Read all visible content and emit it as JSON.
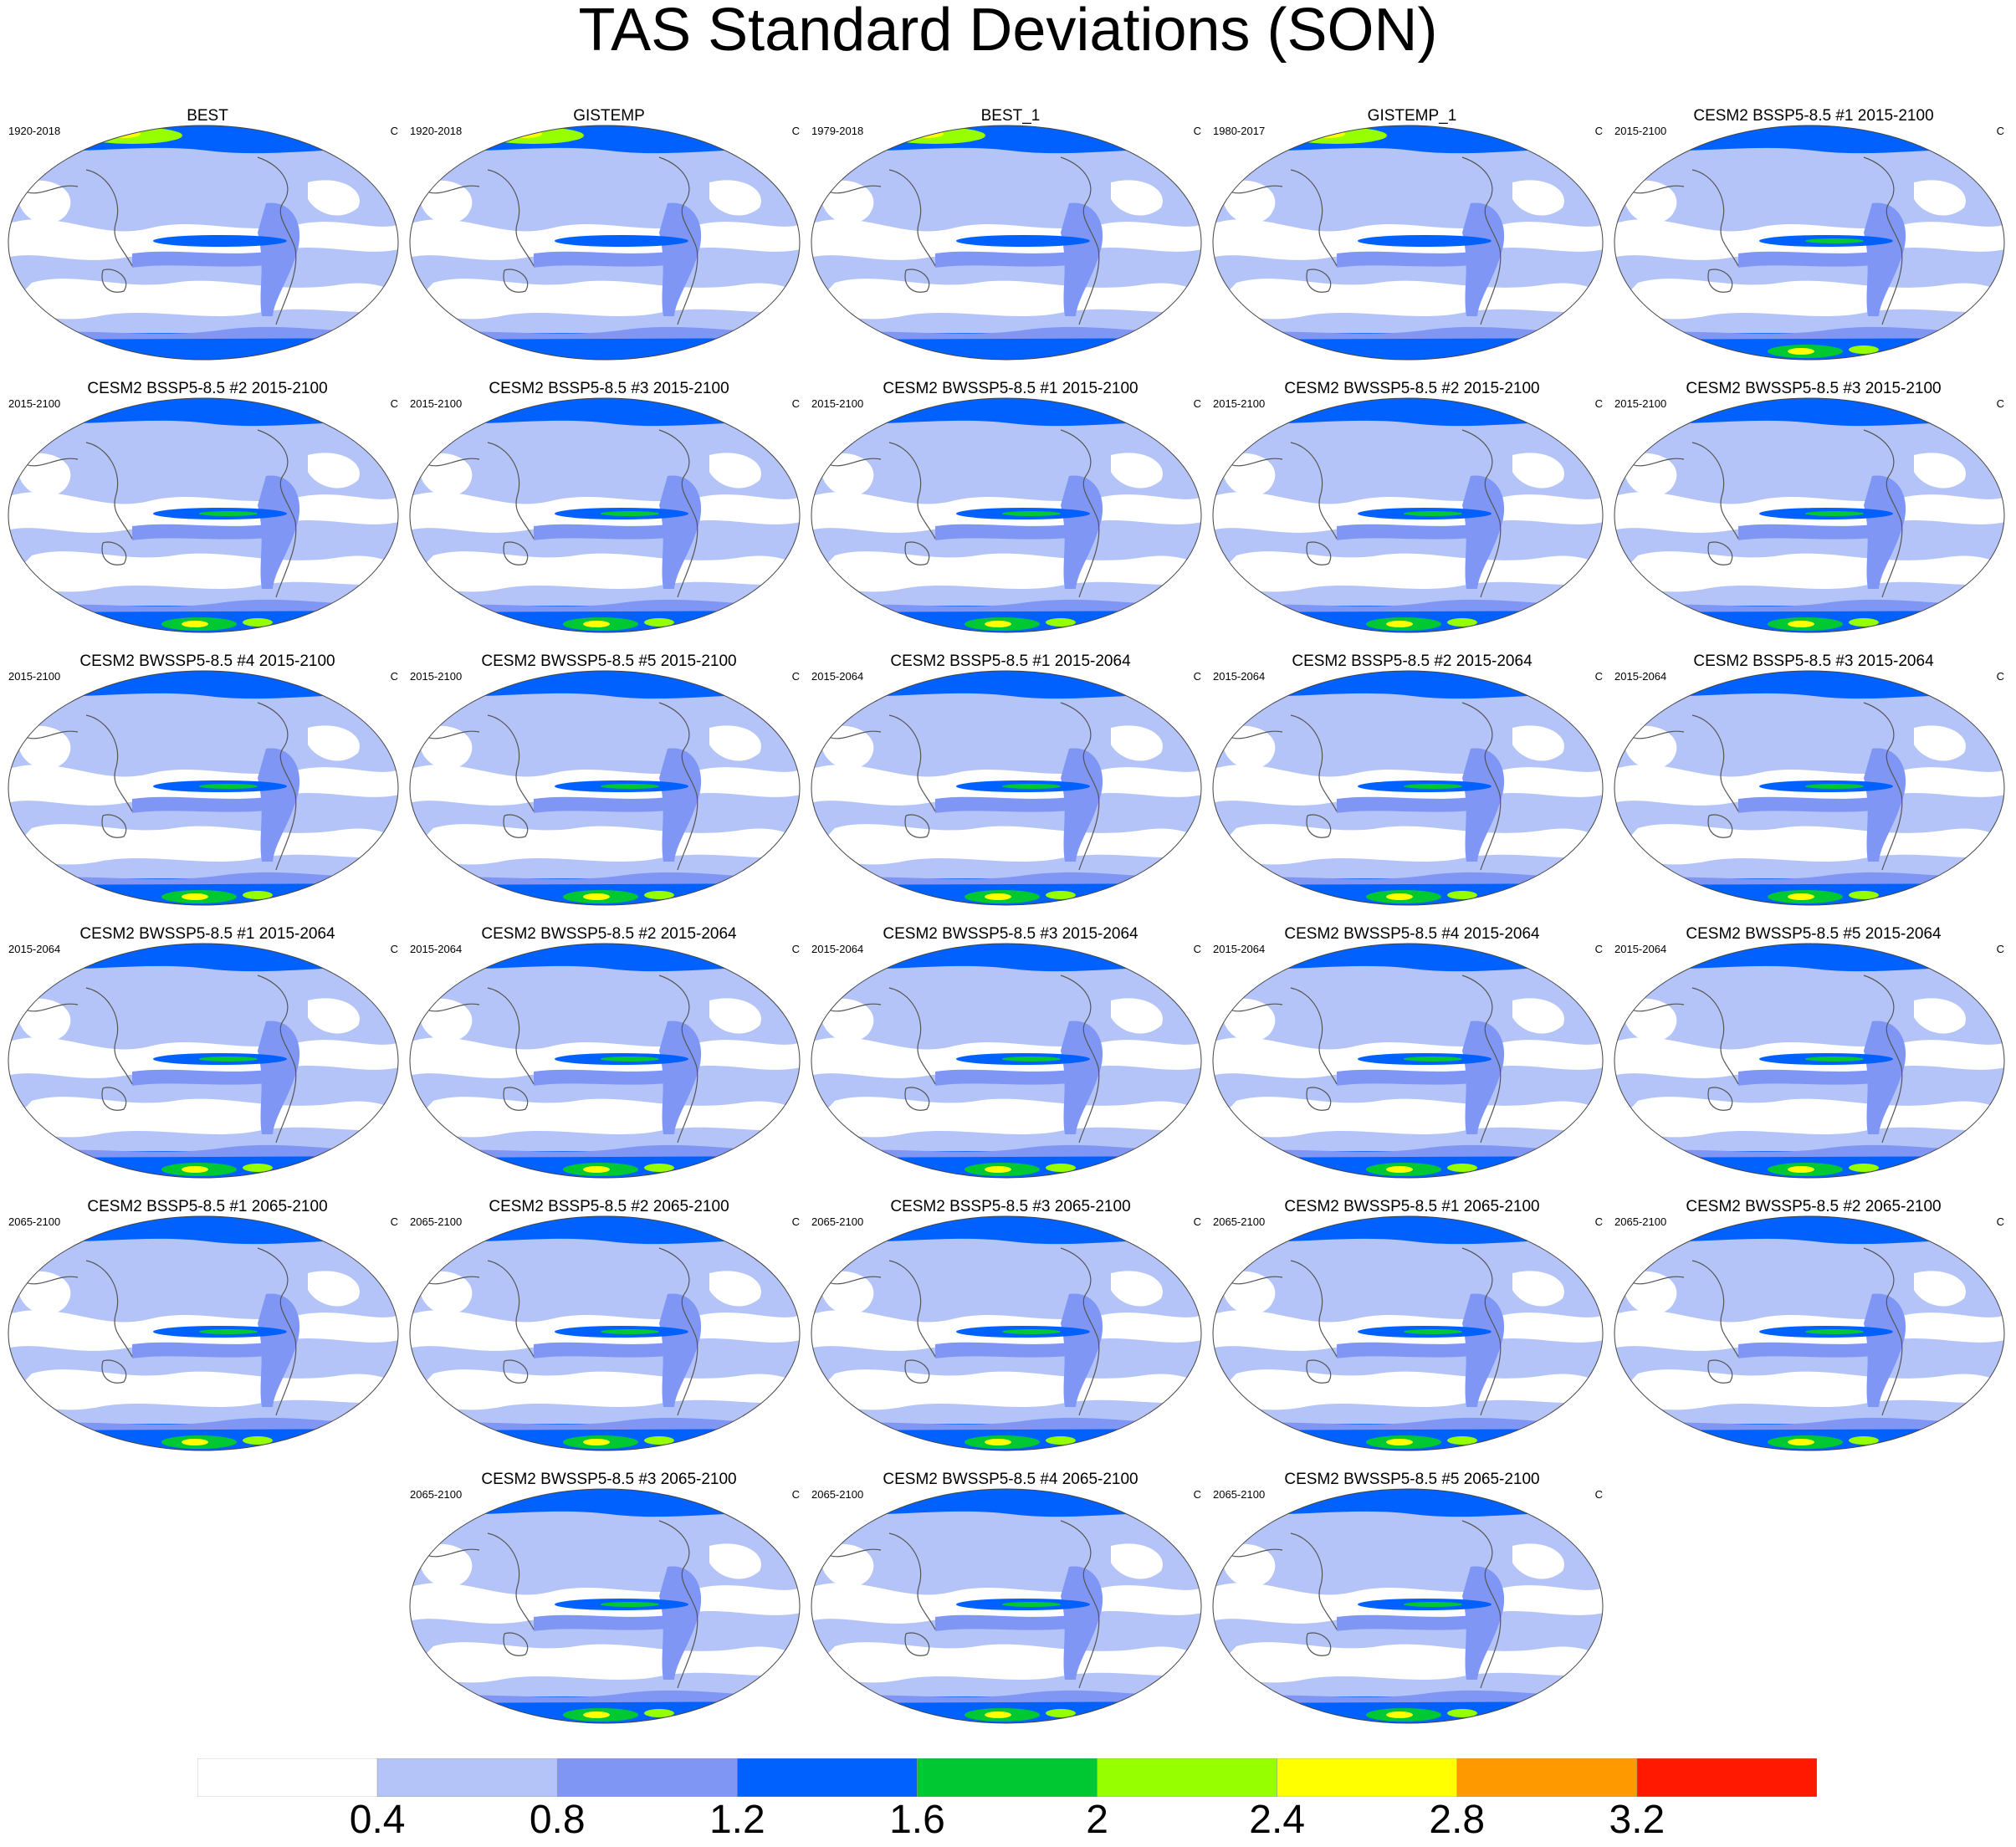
{
  "title": "TAS Standard Deviations (SON)",
  "panels": [
    {
      "title": "BEST",
      "period": "1920-2018",
      "units": "C",
      "style": "obs"
    },
    {
      "title": "GISTEMP",
      "period": "1920-2018",
      "units": "C",
      "style": "obs"
    },
    {
      "title": "BEST_1",
      "period": "1979-2018",
      "units": "C",
      "style": "obs"
    },
    {
      "title": "GISTEMP_1",
      "period": "1980-2017",
      "units": "C",
      "style": "obs"
    },
    {
      "title": "CESM2 BSSP5-8.5 #1 2015-2100",
      "period": "2015-2100",
      "units": "C",
      "style": "model"
    },
    {
      "title": "CESM2 BSSP5-8.5 #2 2015-2100",
      "period": "2015-2100",
      "units": "C",
      "style": "model"
    },
    {
      "title": "CESM2 BSSP5-8.5 #3 2015-2100",
      "period": "2015-2100",
      "units": "C",
      "style": "model"
    },
    {
      "title": "CESM2 BWSSP5-8.5 #1 2015-2100",
      "period": "2015-2100",
      "units": "C",
      "style": "model"
    },
    {
      "title": "CESM2 BWSSP5-8.5 #2 2015-2100",
      "period": "2015-2100",
      "units": "C",
      "style": "model"
    },
    {
      "title": "CESM2 BWSSP5-8.5 #3 2015-2100",
      "period": "2015-2100",
      "units": "C",
      "style": "model"
    },
    {
      "title": "CESM2 BWSSP5-8.5 #4 2015-2100",
      "period": "2015-2100",
      "units": "C",
      "style": "model"
    },
    {
      "title": "CESM2 BWSSP5-8.5 #5 2015-2100",
      "period": "2015-2100",
      "units": "C",
      "style": "model"
    },
    {
      "title": "CESM2 BSSP5-8.5 #1 2015-2064",
      "period": "2015-2064",
      "units": "C",
      "style": "model"
    },
    {
      "title": "CESM2 BSSP5-8.5 #2 2015-2064",
      "period": "2015-2064",
      "units": "C",
      "style": "model"
    },
    {
      "title": "CESM2 BSSP5-8.5 #3 2015-2064",
      "period": "2015-2064",
      "units": "C",
      "style": "model"
    },
    {
      "title": "CESM2 BWSSP5-8.5 #1 2015-2064",
      "period": "2015-2064",
      "units": "C",
      "style": "model"
    },
    {
      "title": "CESM2 BWSSP5-8.5 #2 2015-2064",
      "period": "2015-2064",
      "units": "C",
      "style": "model"
    },
    {
      "title": "CESM2 BWSSP5-8.5 #3 2015-2064",
      "period": "2015-2064",
      "units": "C",
      "style": "model"
    },
    {
      "title": "CESM2 BWSSP5-8.5 #4 2015-2064",
      "period": "2015-2064",
      "units": "C",
      "style": "model"
    },
    {
      "title": "CESM2 BWSSP5-8.5 #5 2015-2064",
      "period": "2015-2064",
      "units": "C",
      "style": "model"
    },
    {
      "title": "CESM2 BSSP5-8.5 #1 2065-2100",
      "period": "2065-2100",
      "units": "C",
      "style": "model"
    },
    {
      "title": "CESM2 BSSP5-8.5 #2 2065-2100",
      "period": "2065-2100",
      "units": "C",
      "style": "model"
    },
    {
      "title": "CESM2 BSSP5-8.5 #3 2065-2100",
      "period": "2065-2100",
      "units": "C",
      "style": "model"
    },
    {
      "title": "CESM2 BWSSP5-8.5 #1 2065-2100",
      "period": "2065-2100",
      "units": "C",
      "style": "model"
    },
    {
      "title": "CESM2 BWSSP5-8.5 #2 2065-2100",
      "period": "2065-2100",
      "units": "C",
      "style": "model"
    },
    {
      "title": "CESM2 BWSSP5-8.5 #3 2065-2100",
      "period": "2065-2100",
      "units": "C",
      "style": "model"
    },
    {
      "title": "CESM2 BWSSP5-8.5 #4 2065-2100",
      "period": "2065-2100",
      "units": "C",
      "style": "model"
    },
    {
      "title": "CESM2 BWSSP5-8.5 #5 2065-2100",
      "period": "2065-2100",
      "units": "C",
      "style": "model"
    }
  ],
  "colorbar": {
    "labels": [
      "0.4",
      "0.8",
      "1.2",
      "1.6",
      "2",
      "2.4",
      "2.8",
      "3.2"
    ],
    "colors": [
      "#ffffff",
      "#b4c4f8",
      "#7f96f5",
      "#0061ff",
      "#00c832",
      "#96ff00",
      "#ffff00",
      "#ff9900",
      "#ff1900"
    ]
  }
}
